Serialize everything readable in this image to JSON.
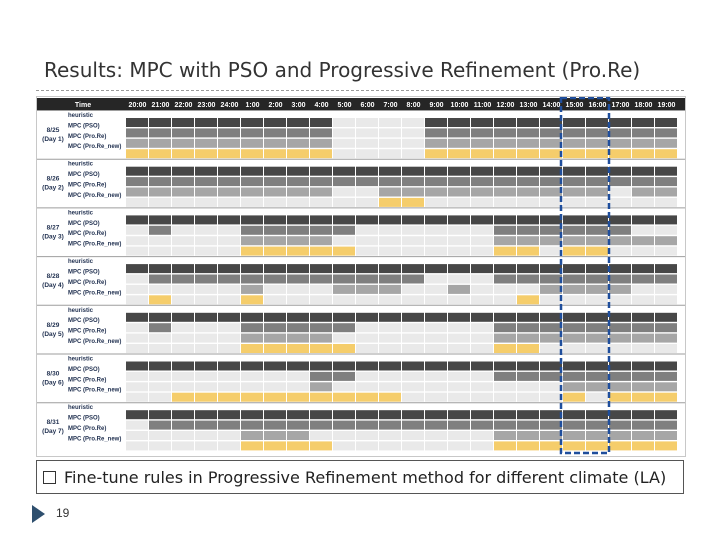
{
  "slide": {
    "title": "Results: MPC with PSO and Progressive Refinement (Pro.Re)",
    "bullet": "Fine-tune rules in Progressive Refinement method  for different climate (LA)",
    "page_number": "19"
  },
  "colors": {
    "heuristic": "#474747",
    "pso": "#7f7f7f",
    "prore": "#a6a6a6",
    "new": "#f5cd6b",
    "off": "#e9e9e9",
    "highlight": "#1f4e9c",
    "header": "#262626"
  },
  "chart_data": {
    "type": "table",
    "header_label": "Time",
    "hours": [
      "20:00",
      "21:00",
      "22:00",
      "23:00",
      "24:00",
      "1:00",
      "2:00",
      "3:00",
      "4:00",
      "5:00",
      "6:00",
      "7:00",
      "8:00",
      "9:00",
      "10:00",
      "11:00",
      "12:00",
      "13:00",
      "14:00",
      "15:00",
      "16:00",
      "17:00",
      "18:00",
      "19:00"
    ],
    "strategies": [
      "heuristic",
      "MPC (PSO)",
      "MPC (Pro.Re)",
      "MPC (Pro.Re_new)"
    ],
    "highlighted_hours": [
      "15:00",
      "16:00"
    ],
    "days": [
      {
        "date": "8/25",
        "day": "(Day 1)",
        "rows": [
          "111111111000011111111111",
          "111111111000011111111111",
          "111111111000011111111111",
          "111111111000011111111111"
        ]
      },
      {
        "date": "8/26",
        "day": "(Day 2)",
        "rows": [
          "111111111111111111111111",
          "111111111111111111111111",
          "111111111001111111111011",
          "000000000001100000000000"
        ]
      },
      {
        "date": "8/27",
        "day": "(Day 3)",
        "rows": [
          "111111111111111111111111",
          "010001111100000011111100",
          "000001111000000011111111",
          "000001111100000011011000"
        ]
      },
      {
        "date": "8/28",
        "day": "(Day 4)",
        "rows": [
          "111111111111111111111111",
          "011111111111100011111111",
          "000001000111001000111100",
          "010001000000000001000000"
        ]
      },
      {
        "date": "8/29",
        "day": "(Day 5)",
        "rows": [
          "111111111111111111111111",
          "010001111100000011111111",
          "000001111000000011111111",
          "000001111100000011000000"
        ]
      },
      {
        "date": "8/30",
        "day": "(Day 6)",
        "rows": [
          "111111111111111111111111",
          "000000001100000011111111",
          "000000001000000000011111",
          "001111111111000000010111"
        ]
      },
      {
        "date": "8/31",
        "day": "(Day 7)",
        "rows": [
          "111111111111111111111111",
          "011111111111111111111111",
          "000001110000000011111111",
          "000001111000000011111111"
        ]
      }
    ]
  }
}
